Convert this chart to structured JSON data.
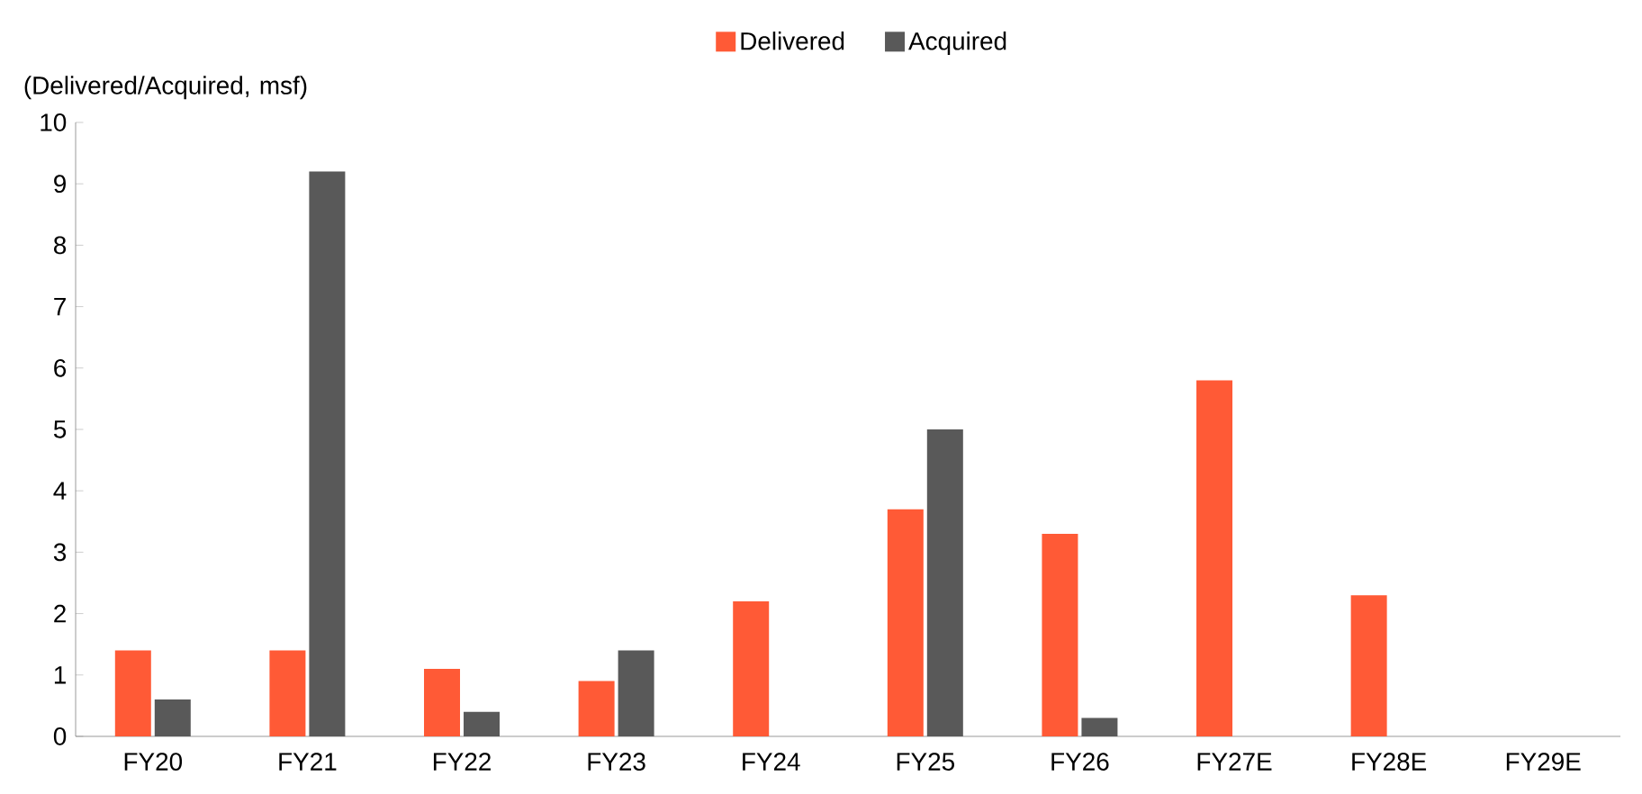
{
  "chart_data": {
    "type": "bar",
    "ylabel": "(Delivered/Acquired, msf)",
    "categories": [
      "FY20",
      "FY21",
      "FY22",
      "FY23",
      "FY24",
      "FY25",
      "FY26",
      "FY27E",
      "FY28E",
      "FY29E"
    ],
    "series": [
      {
        "name": "Delivered",
        "color": "#ff5a36",
        "values": [
          1.4,
          1.4,
          1.1,
          0.9,
          2.2,
          3.7,
          3.3,
          5.8,
          2.3,
          null
        ]
      },
      {
        "name": "Acquired",
        "color": "#595959",
        "values": [
          0.6,
          9.2,
          0.4,
          1.4,
          null,
          5.0,
          0.3,
          null,
          null,
          null
        ]
      }
    ],
    "ylim": [
      0,
      10
    ],
    "yticks": [
      0,
      1,
      2,
      3,
      4,
      5,
      6,
      7,
      8,
      9,
      10
    ],
    "legend": "top"
  }
}
